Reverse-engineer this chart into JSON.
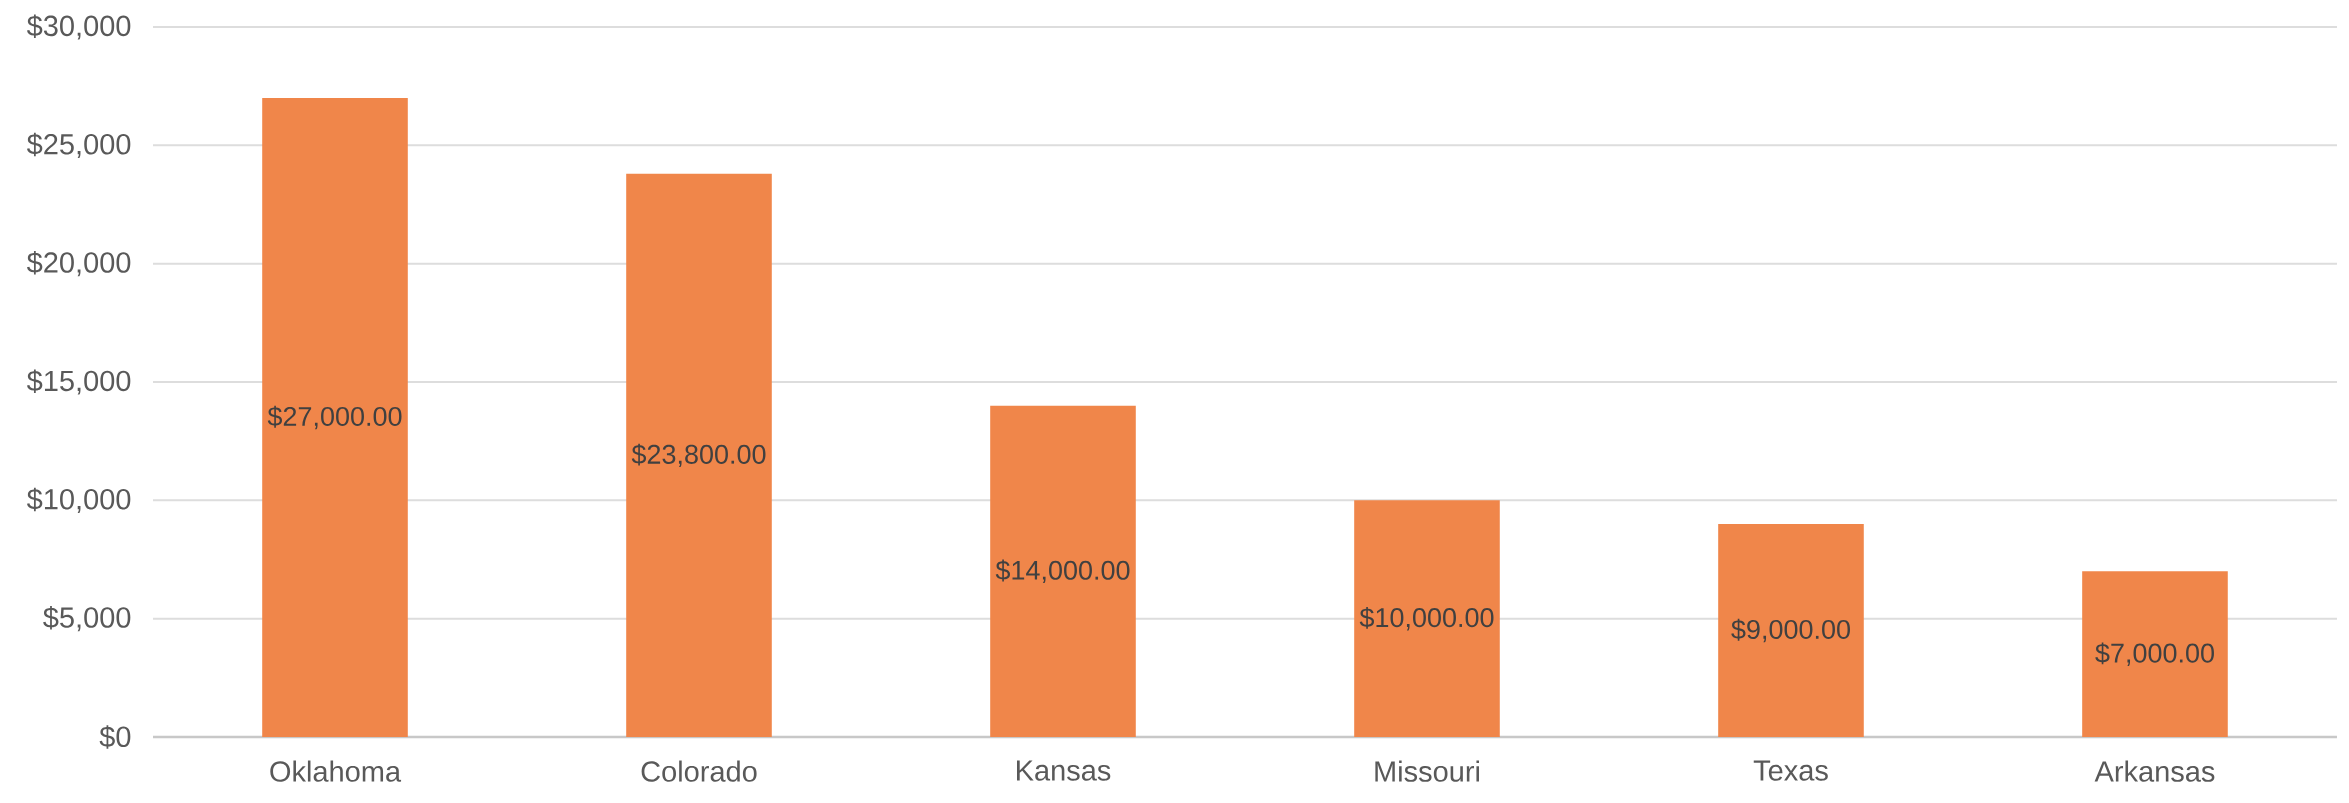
{
  "chart_data": {
    "type": "bar",
    "categories": [
      "Oklahoma",
      "Colorado",
      "Kansas",
      "Missouri",
      "Texas",
      "Arkansas"
    ],
    "values": [
      27000,
      23800,
      14000,
      10000,
      9000,
      7000
    ],
    "color": "#F0864A",
    "value_labels": [
      "$27,000.00",
      "$23,800.00",
      "$14,000.00",
      "$10,000.00",
      "$9,000.00",
      "$7,000.00"
    ],
    "ylim": [
      0,
      30000
    ],
    "yticks": [
      {
        "value": 0,
        "label": "$0"
      },
      {
        "value": 5000,
        "label": "$5,000"
      },
      {
        "value": 10000,
        "label": "$10,000"
      },
      {
        "value": 15000,
        "label": "$15,000"
      },
      {
        "value": 20000,
        "label": "$20,000"
      },
      {
        "value": 25000,
        "label": "$25,000"
      },
      {
        "value": 30000,
        "label": "$30,000"
      }
    ],
    "grid": "y"
  }
}
